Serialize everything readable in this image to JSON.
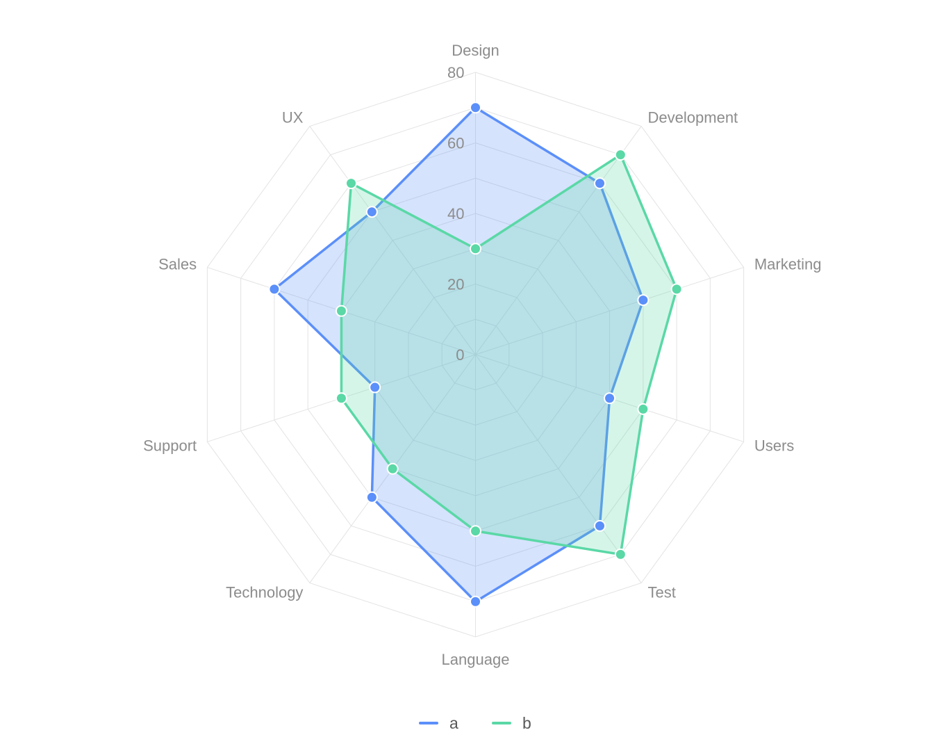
{
  "chart_data": {
    "type": "radar",
    "categories": [
      "Design",
      "Development",
      "Marketing",
      "Users",
      "Test",
      "Language",
      "Technology",
      "Support",
      "Sales",
      "UX"
    ],
    "series": [
      {
        "name": "a",
        "color": "#5b8ff9",
        "values": [
          70,
          60,
          50,
          40,
          60,
          70,
          50,
          30,
          60,
          50
        ]
      },
      {
        "name": "b",
        "color": "#5ad8a6",
        "values": [
          30,
          70,
          60,
          50,
          70,
          50,
          40,
          40,
          40,
          60
        ]
      }
    ],
    "rlim": [
      0,
      80
    ],
    "ticks": [
      "0",
      "20",
      "40",
      "60",
      "80"
    ],
    "legend_position": "bottom",
    "grid": true
  }
}
